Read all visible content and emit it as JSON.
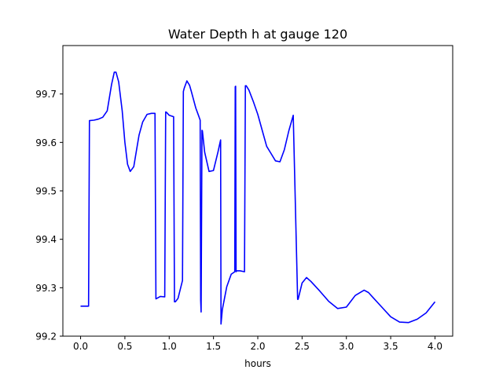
{
  "chart_data": {
    "type": "line",
    "title": "Water Depth h at gauge 120",
    "xlabel": "hours",
    "ylabel": "",
    "xlim": [
      -0.2,
      4.2
    ],
    "ylim": [
      99.2,
      99.8
    ],
    "xticks": [
      0.0,
      0.5,
      1.0,
      1.5,
      2.0,
      2.5,
      3.0,
      3.5,
      4.0
    ],
    "xtick_labels": [
      "0.0",
      "0.5",
      "1.0",
      "1.5",
      "2.0",
      "2.5",
      "3.0",
      "3.5",
      "4.0"
    ],
    "yticks": [
      99.2,
      99.3,
      99.4,
      99.5,
      99.6,
      99.7
    ],
    "ytick_labels": [
      "99.2",
      "99.3",
      "99.4",
      "99.5",
      "99.6",
      "99.7"
    ],
    "grid": false,
    "series": [
      {
        "color": "#0000ff",
        "x": [
          0.0,
          0.05,
          0.09,
          0.1,
          0.15,
          0.2,
          0.25,
          0.3,
          0.35,
          0.38,
          0.4,
          0.43,
          0.47,
          0.5,
          0.53,
          0.56,
          0.6,
          0.63,
          0.66,
          0.7,
          0.75,
          0.8,
          0.84,
          0.85,
          0.86,
          0.9,
          0.95,
          0.96,
          0.97,
          1.0,
          1.05,
          1.06,
          1.07,
          1.1,
          1.15,
          1.16,
          1.17,
          1.2,
          1.23,
          1.25,
          1.3,
          1.33,
          1.35,
          1.355,
          1.36,
          1.37,
          1.375,
          1.38,
          1.4,
          1.45,
          1.5,
          1.55,
          1.58,
          1.585,
          1.6,
          1.65,
          1.7,
          1.74,
          1.745,
          1.75,
          1.755,
          1.76,
          1.8,
          1.85,
          1.86,
          1.87,
          1.9,
          1.95,
          2.0,
          2.05,
          2.1,
          2.15,
          2.2,
          2.25,
          2.3,
          2.35,
          2.4,
          2.45,
          2.455,
          2.46,
          2.5,
          2.55,
          2.6,
          2.7,
          2.8,
          2.9,
          3.0,
          3.1,
          3.2,
          3.25,
          3.3,
          3.4,
          3.5,
          3.6,
          3.7,
          3.8,
          3.9,
          4.0
        ],
        "y": [
          99.262,
          99.262,
          99.262,
          99.645,
          99.646,
          99.648,
          99.652,
          99.665,
          99.72,
          99.745,
          99.745,
          99.725,
          99.665,
          99.6,
          99.555,
          99.54,
          99.55,
          99.583,
          99.615,
          99.642,
          99.658,
          99.66,
          99.66,
          99.277,
          99.278,
          99.282,
          99.281,
          99.663,
          99.662,
          99.656,
          99.653,
          99.271,
          99.271,
          99.278,
          99.315,
          99.705,
          99.712,
          99.727,
          99.718,
          99.705,
          99.671,
          99.656,
          99.646,
          99.275,
          99.25,
          99.625,
          99.624,
          99.615,
          99.58,
          99.54,
          99.542,
          99.58,
          99.605,
          99.225,
          99.255,
          99.302,
          99.328,
          99.333,
          99.715,
          99.716,
          99.333,
          99.335,
          99.335,
          99.333,
          99.717,
          99.717,
          99.708,
          99.684,
          99.658,
          99.625,
          99.592,
          99.577,
          99.562,
          99.56,
          99.585,
          99.624,
          99.656,
          99.276,
          99.276,
          99.28,
          99.31,
          99.321,
          99.313,
          99.293,
          99.272,
          99.257,
          99.26,
          99.284,
          99.295,
          99.29,
          99.28,
          99.26,
          99.24,
          99.229,
          99.228,
          99.235,
          99.248,
          99.271
        ]
      }
    ]
  }
}
